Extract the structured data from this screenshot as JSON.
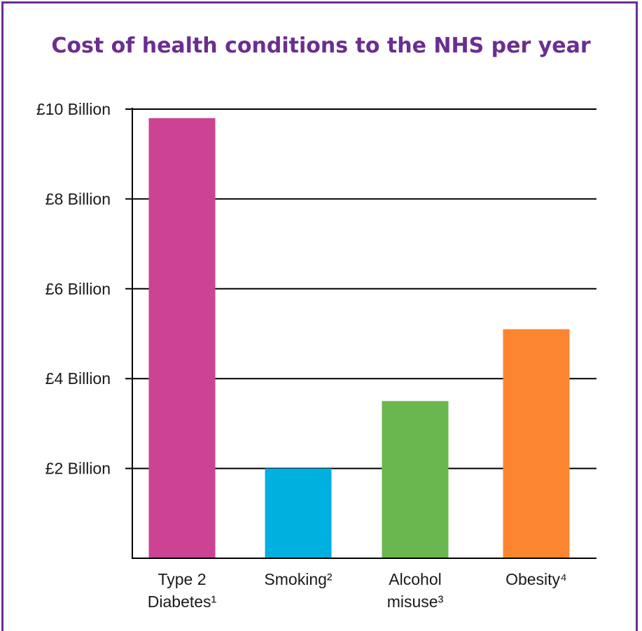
{
  "chart_data": {
    "type": "bar",
    "title": "Cost of health conditions to the NHS per year",
    "xlabel": "",
    "ylabel": "",
    "unit": "£ Billion",
    "ylim": [
      0,
      10
    ],
    "yticks": [
      {
        "value": 2,
        "label": "£2 Billion"
      },
      {
        "value": 4,
        "label": "£4 Billion"
      },
      {
        "value": 6,
        "label": "£6 Billion"
      },
      {
        "value": 8,
        "label": "£8 Billion"
      },
      {
        "value": 10,
        "label": "£10 Billion"
      }
    ],
    "grid": true,
    "categories": [
      {
        "lines": [
          "Type 2",
          "Diabetes¹"
        ]
      },
      {
        "lines": [
          "Smoking²"
        ]
      },
      {
        "lines": [
          "Alcohol",
          "misuse³"
        ]
      },
      {
        "lines": [
          "Obesity⁴"
        ]
      }
    ],
    "values": [
      9.8,
      2.0,
      3.5,
      5.1
    ],
    "colors": [
      "#cc4393",
      "#00b0de",
      "#6ab64f",
      "#fc8630"
    ]
  }
}
